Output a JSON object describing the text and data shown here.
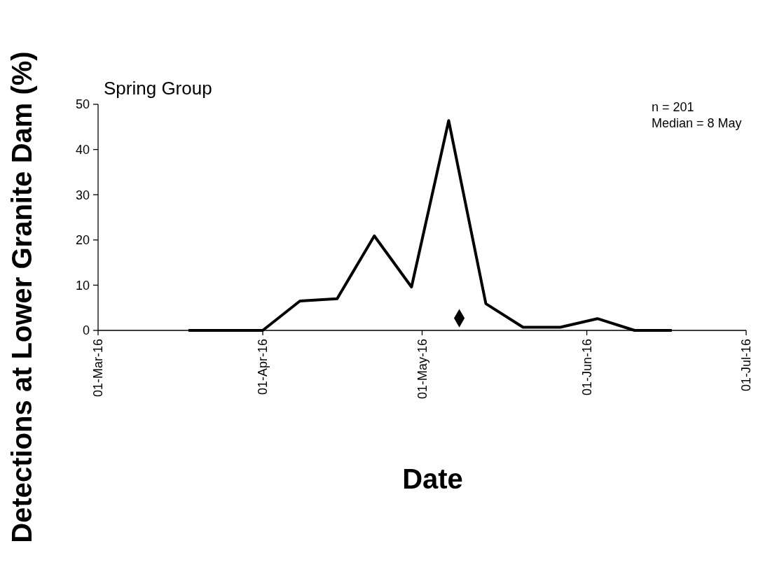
{
  "chart_data": {
    "type": "line",
    "title": "Spring Group",
    "xlabel": "Date",
    "ylabel": "Detections at Lower Granite Dam (%)",
    "annotations": [
      "n = 201",
      "Median = 8 May"
    ],
    "xlim": [
      "2016-03-01",
      "2016-07-01"
    ],
    "xticks": [
      {
        "value": "2016-03-01",
        "label": "01-Mar-16"
      },
      {
        "value": "2016-04-01",
        "label": "01-Apr-16"
      },
      {
        "value": "2016-05-01",
        "label": "01-May-16"
      },
      {
        "value": "2016-06-01",
        "label": "01-Jun-16"
      },
      {
        "value": "2016-07-01",
        "label": "01-Jul-16"
      }
    ],
    "ylim": [
      0,
      50
    ],
    "yticks": [
      0,
      10,
      20,
      30,
      40,
      50
    ],
    "grid": false,
    "series": [
      {
        "color": "#000000",
        "marker": "none",
        "x": [
          "2016-03-18",
          "2016-03-25",
          "2016-04-01",
          "2016-04-08",
          "2016-04-15",
          "2016-04-22",
          "2016-04-29",
          "2016-05-06",
          "2016-05-13",
          "2016-05-20",
          "2016-05-27",
          "2016-06-03",
          "2016-06-10",
          "2016-06-17"
        ],
        "values": [
          0,
          0,
          0,
          6.5,
          7,
          20.9,
          9.6,
          46.4,
          5.9,
          0.7,
          0.7,
          2.6,
          0,
          0
        ]
      },
      {
        "type": "scatter",
        "color": "#000000",
        "marker": "diamond",
        "x": [
          "2016-05-08"
        ],
        "values": [
          2.7
        ]
      }
    ]
  }
}
